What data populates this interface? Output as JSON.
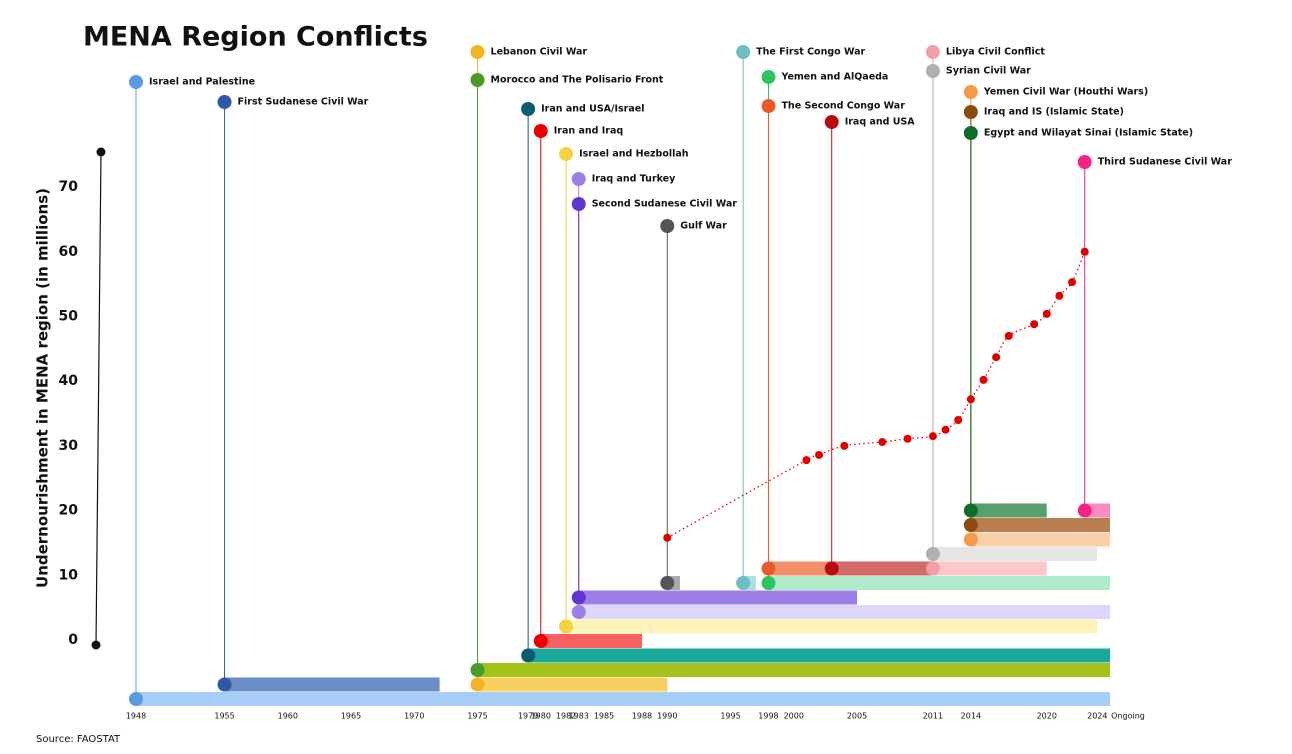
{
  "chart_data": {
    "type": "timeline",
    "title": "MENA Region Conflicts",
    "y_label": "Undernourishment in MENA region (in millions)",
    "source": "Source: FAOSTAT",
    "xlim": [
      1948,
      2025
    ],
    "xticks": [
      1948,
      1955,
      1960,
      1965,
      1970,
      1975,
      1979,
      1980,
      1982,
      1983,
      1985,
      1988,
      1990,
      1995,
      1998,
      2000,
      2005,
      2011,
      2014,
      2020,
      2024
    ],
    "ongoing_label": "Ongoing",
    "ylim": [
      0,
      75
    ],
    "yticks": [
      0,
      10,
      20,
      30,
      40,
      50,
      60,
      70
    ],
    "conflicts": [
      {
        "name": "Israel and Palestine",
        "start": 1948,
        "end": null,
        "color": "#a6cdf5",
        "marker_color": "#5b9be6"
      },
      {
        "name": "First Sudanese Civil War",
        "start": 1955,
        "end": 1972,
        "color": "#6a8cc7",
        "marker_color": "#2f58a6"
      },
      {
        "name": "Lebanon Civil War",
        "start": 1975,
        "end": 1990,
        "color": "#f8d060",
        "marker_color": "#f5b324"
      },
      {
        "name": "Morocco and The Polisario Front",
        "start": 1975,
        "end": null,
        "color": "#a3c21a",
        "marker_color": "#4c9a2a"
      },
      {
        "name": "Iran and USA/Israel",
        "start": 1979,
        "end": null,
        "color": "#1aa89a",
        "marker_color": "#0d5a73"
      },
      {
        "name": "Iran and Iraq",
        "start": 1980,
        "end": 1988,
        "color": "#f96060",
        "marker_color": "#ee0000"
      },
      {
        "name": "Israel and Hezbollah",
        "start": 1982,
        "end": 2024,
        "color": "#fdf3b8",
        "marker_color": "#f5d33c"
      },
      {
        "name": "Iraq and Turkey",
        "start": 1983,
        "end": null,
        "color": "#dcd6fb",
        "marker_color": "#9b80e8"
      },
      {
        "name": "Second Sudanese Civil War",
        "start": 1983,
        "end": 2005,
        "color": "#9b7fe6",
        "marker_color": "#6235d1"
      },
      {
        "name": "Gulf War",
        "start": 1990,
        "end": 1991,
        "color": "#aaaaaa",
        "marker_color": "#555555"
      },
      {
        "name": "The First Congo War",
        "start": 1996,
        "end": 1997,
        "color": "#a8dede",
        "marker_color": "#6cbfbf"
      },
      {
        "name": "Yemen and AlQaeda",
        "start": 1998,
        "end": null,
        "color": "#aeebc9",
        "marker_color": "#2cc45e"
      },
      {
        "name": "The Second Congo War",
        "start": 1998,
        "end": 2003,
        "color": "#f28f6a",
        "marker_color": "#e85a2b"
      },
      {
        "name": "Iraq and USA",
        "start": 2003,
        "end": 2011,
        "color": "#d46a6a",
        "marker_color": "#b80d0d"
      },
      {
        "name": "Libya Civil Conflict",
        "start": 2011,
        "end": 2020,
        "color": "#fcc7c7",
        "marker_color": "#f0a0a8"
      },
      {
        "name": "Syrian Civil War",
        "start": 2011,
        "end": 2024,
        "color": "#e6e6e6",
        "marker_color": "#b0b0b0"
      },
      {
        "name": "Yemen Civil War (Houthi Wars)",
        "start": 2014,
        "end": null,
        "color": "#f8cfa8",
        "marker_color": "#f7994a"
      },
      {
        "name": "Iraq and IS (Islamic State)",
        "start": 2014,
        "end": null,
        "color": "#b87d50",
        "marker_color": "#8c4a10"
      },
      {
        "name": "Egypt and Wilayat Sinai (Islamic State)",
        "start": 2014,
        "end": 2020,
        "color": "#58a06a",
        "marker_color": "#0d6e2a"
      },
      {
        "name": "Third Sudanese Civil War",
        "start": 2023,
        "end": null,
        "color": "#f98bbf",
        "marker_color": "#f42485"
      }
    ],
    "line": {
      "color": "#e00000",
      "x": [
        1990,
        2001,
        2002,
        2004,
        2007,
        2009,
        2011,
        2012,
        2013,
        2014,
        2015,
        2016,
        2017,
        2019,
        2020,
        2021,
        2022,
        2023
      ],
      "values": [
        15.8,
        27.8,
        28.6,
        30.0,
        30.6,
        31.1,
        31.5,
        32.5,
        34.0,
        37.2,
        40.2,
        43.7,
        47.0,
        48.8,
        50.4,
        53.2,
        55.3,
        60.0
      ]
    }
  }
}
